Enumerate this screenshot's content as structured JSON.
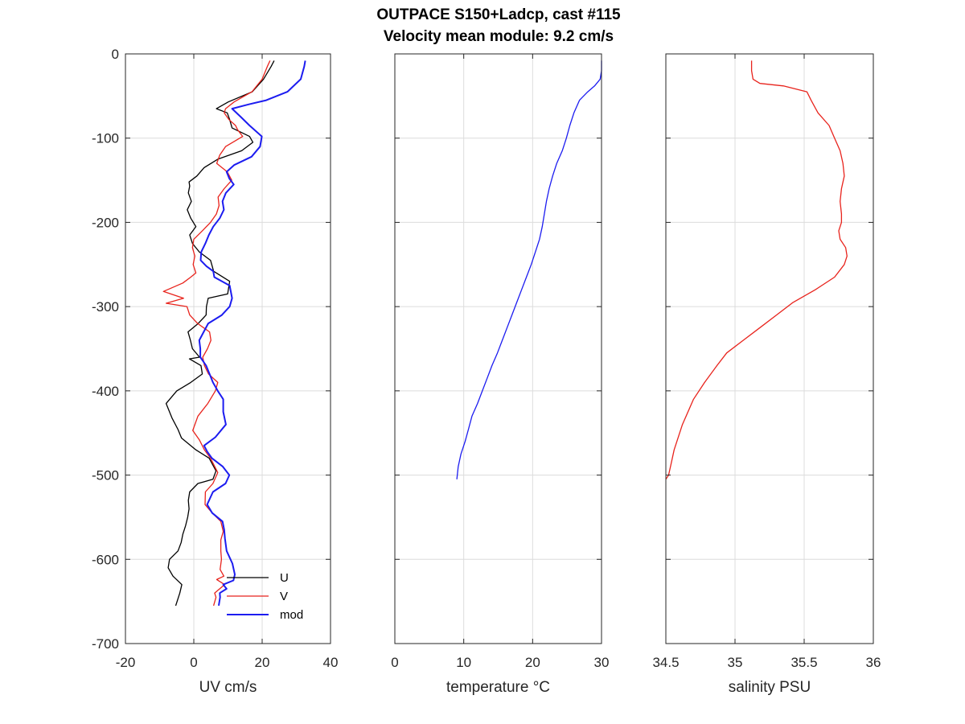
{
  "title": {
    "line1": "OUTPACE S150+Ladcp, cast #115",
    "line2": "Velocity mean module:  9.2 cm/s"
  },
  "chart_data": [
    {
      "type": "line",
      "panel": "velocity",
      "xlabel": "UV cm/s",
      "ylabel": "",
      "xlim": [
        -20,
        40
      ],
      "ylim": [
        -700,
        0
      ],
      "xticks": [
        -20,
        0,
        20,
        40
      ],
      "yticks": [
        0,
        -100,
        -200,
        -300,
        -400,
        -500,
        -600,
        -700
      ],
      "grid": true,
      "legend_position": "bottom-right",
      "colors": {
        "U": "#000000",
        "V": "#e8231c",
        "mod": "#1c1cf0"
      },
      "series": [
        {
          "name": "U",
          "x": [
            23.5,
            22.6,
            20.4,
            17.1,
            10.1,
            6.6,
            9.8,
            10.5,
            11.2,
            16.3,
            17.3,
            14.0,
            7.0,
            3.0,
            0.9,
            -1.4,
            -1.2,
            -1.6,
            -0.7,
            -1.9,
            -0.9,
            0.6,
            -1.2,
            -0.4,
            1.6,
            4.9,
            5.4,
            5.8,
            10.5,
            9.9,
            4.2,
            3.7,
            3.6,
            1.3,
            -1.7,
            -1.0,
            -0.4,
            1.7,
            -1.3,
            2.1,
            2.5,
            -0.9,
            -5.0,
            -8.1,
            -6.4,
            -4.6,
            -3.6,
            0.6,
            4.5,
            6.5,
            5.6,
            1.2,
            -1.2,
            -1.6,
            -1.4,
            -1.8,
            -2.4,
            -3.2,
            -3.7,
            -4.6,
            -7.1,
            -7.5,
            -6.1,
            -3.5,
            -4.1,
            -5.3
          ],
          "y": [
            -8,
            -15,
            -30,
            -45,
            -57,
            -65,
            -70,
            -78,
            -88,
            -98,
            -105,
            -115,
            -125,
            -135,
            -145,
            -152,
            -157,
            -165,
            -175,
            -185,
            -195,
            -205,
            -215,
            -225,
            -235,
            -245,
            -252,
            -258,
            -270,
            -285,
            -290,
            -300,
            -310,
            -320,
            -330,
            -340,
            -350,
            -360,
            -362,
            -370,
            -380,
            -390,
            -400,
            -415,
            -432,
            -446,
            -456,
            -470,
            -480,
            -495,
            -505,
            -510,
            -520,
            -530,
            -540,
            -550,
            -560,
            -570,
            -580,
            -590,
            -600,
            -610,
            -620,
            -630,
            -640,
            -655
          ]
        },
        {
          "name": "V",
          "x": [
            22.3,
            21.5,
            20.0,
            17.0,
            11.8,
            9.3,
            8.9,
            10.3,
            12.2,
            12.8,
            14.3,
            9.3,
            7.6,
            6.7,
            9.8,
            11.1,
            8.9,
            7.1,
            7.4,
            6.6,
            4.9,
            2.5,
            0.0,
            -0.4,
            0.3,
            -0.2,
            0.6,
            -0.9,
            -3.2,
            -8.9,
            -3.0,
            -8.1,
            -2.0,
            -1.2,
            1.1,
            4.6,
            5.0,
            4.0,
            2.6,
            3.1,
            4.3,
            7.0,
            6.3,
            4.1,
            1.2,
            -0.3,
            1.6,
            3.1,
            4.9,
            7.0,
            5.6,
            3.4,
            3.3,
            5.4,
            7.9,
            8.6,
            7.9,
            7.9,
            8.1,
            7.7,
            8.8,
            6.7,
            9.0,
            6.1,
            6.5,
            5.8
          ],
          "y": [
            -8,
            -15,
            -30,
            -45,
            -57,
            -65,
            -70,
            -78,
            -85,
            -90,
            -98,
            -110,
            -120,
            -130,
            -140,
            -150,
            -160,
            -170,
            -180,
            -190,
            -200,
            -210,
            -220,
            -230,
            -240,
            -250,
            -260,
            -265,
            -272,
            -282,
            -290,
            -296,
            -300,
            -310,
            -320,
            -330,
            -340,
            -350,
            -360,
            -370,
            -380,
            -390,
            -400,
            -415,
            -430,
            -447,
            -458,
            -470,
            -480,
            -497,
            -510,
            -520,
            -535,
            -545,
            -555,
            -567,
            -577,
            -590,
            -600,
            -612,
            -620,
            -624,
            -630,
            -640,
            -645,
            -655
          ]
        },
        {
          "name": "mod",
          "x": [
            32.6,
            32.3,
            31.3,
            27.4,
            21.2,
            16.0,
            11.2,
            13.8,
            16.3,
            19.9,
            19.4,
            16.9,
            11.8,
            9.6,
            10.4,
            11.7,
            9.4,
            8.4,
            8.8,
            7.6,
            5.7,
            4.4,
            3.4,
            2.2,
            2.0,
            3.7,
            5.7,
            6.0,
            10.5,
            11.2,
            10.5,
            8.2,
            4.2,
            2.9,
            1.6,
            1.9,
            1.9,
            3.6,
            4.6,
            5.6,
            7.0,
            8.6,
            8.6,
            9.4,
            6.3,
            3.0,
            3.9,
            5.3,
            8.5,
            10.4,
            9.3,
            5.6,
            3.9,
            5.4,
            8.4,
            8.9,
            9.1,
            9.6,
            11.3,
            12.0,
            11.6,
            8.6,
            9.6,
            7.6,
            7.7,
            7.3
          ],
          "y": [
            -8,
            -15,
            -30,
            -45,
            -55,
            -60,
            -65,
            -75,
            -85,
            -98,
            -110,
            -122,
            -132,
            -140,
            -148,
            -155,
            -165,
            -175,
            -185,
            -195,
            -205,
            -215,
            -225,
            -235,
            -245,
            -252,
            -258,
            -265,
            -275,
            -290,
            -300,
            -310,
            -320,
            -330,
            -340,
            -350,
            -360,
            -370,
            -380,
            -390,
            -400,
            -410,
            -425,
            -440,
            -455,
            -465,
            -472,
            -480,
            -490,
            -500,
            -510,
            -520,
            -535,
            -545,
            -555,
            -565,
            -575,
            -590,
            -605,
            -618,
            -625,
            -630,
            -635,
            -640,
            -645,
            -655
          ]
        }
      ]
    },
    {
      "type": "line",
      "panel": "temperature",
      "xlabel": "temperature °C",
      "ylabel": "",
      "xlim": [
        0,
        30
      ],
      "ylim": [
        -700,
        0
      ],
      "xticks": [
        0,
        10,
        20,
        30
      ],
      "grid": true,
      "colors": {
        "temperature": "#1c1cf0"
      },
      "series": [
        {
          "name": "",
          "x": [
            30.0,
            30.0,
            29.8,
            29.0,
            28.0,
            26.8,
            26.0,
            25.4,
            24.9,
            24.3,
            23.5,
            22.9,
            22.4,
            22.0,
            21.7,
            21.4,
            21.0,
            20.4,
            19.8,
            19.1,
            18.4,
            17.7,
            17.0,
            16.3,
            15.6,
            14.9,
            14.1,
            13.4,
            12.7,
            12.0,
            11.2,
            10.7,
            10.2,
            9.6,
            9.2,
            9.0
          ],
          "y": [
            -8,
            -20,
            -30,
            -38,
            -45,
            -55,
            -70,
            -85,
            -100,
            -115,
            -130,
            -145,
            -160,
            -175,
            -190,
            -205,
            -220,
            -235,
            -250,
            -265,
            -280,
            -295,
            -310,
            -325,
            -340,
            -355,
            -370,
            -385,
            -400,
            -415,
            -430,
            -445,
            -460,
            -475,
            -490,
            -505
          ]
        }
      ]
    },
    {
      "type": "line",
      "panel": "salinity",
      "xlabel": "salinity PSU",
      "ylabel": "",
      "xlim": [
        34.5,
        36
      ],
      "ylim": [
        -700,
        0
      ],
      "xticks": [
        34.5,
        35,
        35.5,
        36
      ],
      "grid": true,
      "colors": {
        "salinity": "#e8231c"
      },
      "series": [
        {
          "name": "",
          "x": [
            35.12,
            35.12,
            35.13,
            35.18,
            35.35,
            35.52,
            35.55,
            35.6,
            35.68,
            35.72,
            35.76,
            35.78,
            35.79,
            35.77,
            35.76,
            35.77,
            35.77,
            35.75,
            35.76,
            35.8,
            35.81,
            35.79,
            35.72,
            35.58,
            35.42,
            35.3,
            35.18,
            35.06,
            34.94,
            34.87,
            34.78,
            34.7,
            34.62,
            34.56,
            34.54,
            34.52,
            34.5
          ],
          "y": [
            -8,
            -20,
            -30,
            -35,
            -38,
            -45,
            -55,
            -70,
            -85,
            -100,
            -115,
            -130,
            -145,
            -160,
            -175,
            -190,
            -200,
            -210,
            -220,
            -230,
            -240,
            -250,
            -265,
            -280,
            -295,
            -310,
            -325,
            -340,
            -355,
            -370,
            -390,
            -410,
            -440,
            -470,
            -485,
            -500,
            -505
          ]
        }
      ]
    }
  ],
  "legend": {
    "entries": [
      {
        "label": "U",
        "color": "#000000"
      },
      {
        "label": "V",
        "color": "#e8231c"
      },
      {
        "label": "mod",
        "color": "#1c1cf0"
      }
    ]
  }
}
